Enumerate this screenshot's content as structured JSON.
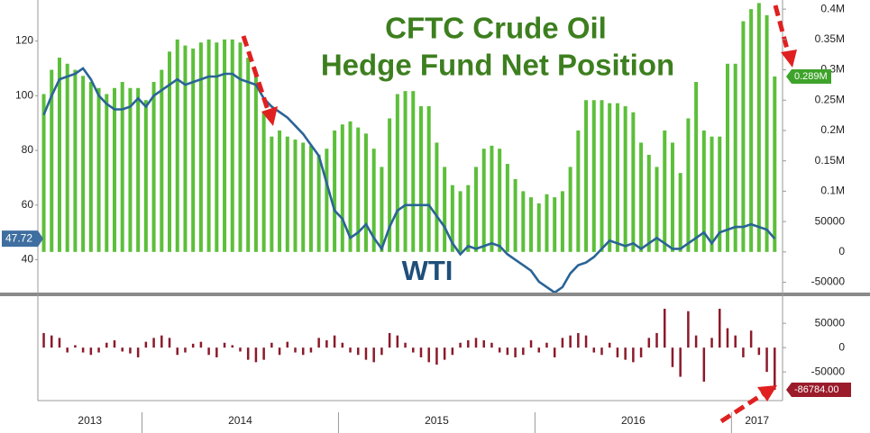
{
  "chart_data": {
    "type": "combo",
    "title_lines": [
      "CFTC Crude Oil",
      "Hedge Fund Net Position"
    ],
    "x": [
      2013.5,
      2013.54,
      2013.58,
      2013.62,
      2013.66,
      2013.7,
      2013.74,
      2013.78,
      2013.82,
      2013.86,
      2013.9,
      2013.94,
      2013.98,
      2014.02,
      2014.06,
      2014.1,
      2014.14,
      2014.18,
      2014.22,
      2014.26,
      2014.3,
      2014.34,
      2014.38,
      2014.42,
      2014.46,
      2014.5,
      2014.54,
      2014.58,
      2014.62,
      2014.66,
      2014.7,
      2014.74,
      2014.78,
      2014.82,
      2014.86,
      2014.9,
      2014.94,
      2014.98,
      2015.02,
      2015.06,
      2015.1,
      2015.14,
      2015.18,
      2015.22,
      2015.26,
      2015.3,
      2015.34,
      2015.38,
      2015.42,
      2015.46,
      2015.5,
      2015.54,
      2015.58,
      2015.62,
      2015.66,
      2015.7,
      2015.74,
      2015.78,
      2015.82,
      2015.86,
      2015.9,
      2015.94,
      2015.98,
      2016.02,
      2016.06,
      2016.1,
      2016.14,
      2016.18,
      2016.22,
      2016.26,
      2016.3,
      2016.34,
      2016.38,
      2016.42,
      2016.46,
      2016.5,
      2016.54,
      2016.58,
      2016.62,
      2016.66,
      2016.7,
      2016.74,
      2016.78,
      2016.82,
      2016.86,
      2016.9,
      2016.94,
      2016.98,
      2017.02,
      2017.06,
      2017.1,
      2017.14,
      2017.18,
      2017.22
    ],
    "xlim": [
      2013.47,
      2017.26
    ],
    "xticks": [
      2013,
      2014,
      2015,
      2016,
      2017
    ],
    "ylim": [
      28,
      135
    ],
    "yticks": [
      40,
      60,
      80,
      100,
      120
    ],
    "y2lim": [
      -67000,
      415000
    ],
    "y2ticks": [
      -50000,
      0,
      50000,
      {
        "value": 100000,
        "label": "0.1M"
      },
      {
        "value": 150000,
        "label": "0.15M"
      },
      {
        "value": 200000,
        "label": "0.2M"
      },
      {
        "value": 250000,
        "label": "0.25M"
      },
      {
        "value": 300000,
        "label": "0.3M"
      },
      {
        "value": 350000,
        "label": "0.35M"
      },
      {
        "value": 400000,
        "label": "0.4M"
      }
    ],
    "y3lim": [
      -109000,
      104000
    ],
    "y3ticks": [
      -50000,
      0,
      50000
    ],
    "series": [
      {
        "kind": "bar",
        "axis": "y2",
        "color": "#5cbf3a",
        "last_value_label": "0.289M",
        "values": [
          260000,
          300000,
          320000,
          310000,
          300000,
          290000,
          280000,
          270000,
          260000,
          270000,
          280000,
          270000,
          270000,
          250000,
          280000,
          300000,
          330000,
          350000,
          340000,
          335000,
          345000,
          350000,
          345000,
          350000,
          350000,
          345000,
          320000,
          290000,
          230000,
          190000,
          200000,
          190000,
          185000,
          180000,
          175000,
          160000,
          170000,
          200000,
          210000,
          215000,
          205000,
          195000,
          170000,
          140000,
          220000,
          260000,
          265000,
          265000,
          240000,
          240000,
          180000,
          140000,
          110000,
          100000,
          110000,
          140000,
          170000,
          175000,
          170000,
          145000,
          120000,
          100000,
          90000,
          80000,
          95000,
          90000,
          100000,
          140000,
          200000,
          250000,
          250000,
          250000,
          245000,
          245000,
          240000,
          230000,
          180000,
          160000,
          140000,
          200000,
          180000,
          130000,
          220000,
          280000,
          200000,
          190000,
          190000,
          310000,
          310000,
          380000,
          400000,
          410000,
          390000,
          289000
        ]
      },
      {
        "name": "WTI",
        "kind": "line",
        "axis": "y",
        "color": "#2a6496",
        "values": [
          93,
          100,
          106,
          107,
          108,
          110,
          106,
          100,
          97,
          95,
          95,
          96,
          99,
          96,
          100,
          102,
          104,
          106,
          104,
          105,
          106,
          107,
          107,
          108,
          108,
          106,
          105,
          104,
          99,
          96,
          94,
          92,
          89,
          86,
          82,
          78,
          68,
          58,
          55,
          48,
          50,
          53,
          48,
          44,
          52,
          58,
          60,
          60,
          60,
          60,
          56,
          52,
          46,
          42,
          45,
          44,
          45,
          46,
          45,
          42,
          40,
          38,
          36,
          32,
          30,
          28,
          30,
          35,
          38,
          39,
          41,
          44,
          47,
          46,
          45,
          46,
          44,
          46,
          48,
          46,
          44,
          44,
          46,
          48,
          50,
          46,
          50,
          51,
          52,
          52,
          53,
          52,
          51,
          47.72
        ]
      },
      {
        "kind": "bar",
        "axis": "y3",
        "color": "#8b1a2a",
        "last_value_label": "-86784.00",
        "values": [
          30000,
          25000,
          20000,
          -10000,
          5000,
          -10000,
          -15000,
          -10000,
          10000,
          15000,
          -8000,
          -12000,
          -20000,
          12000,
          20000,
          25000,
          20000,
          -15000,
          -10000,
          8000,
          12000,
          -15000,
          -20000,
          10000,
          5000,
          -8000,
          -25000,
          -30000,
          -25000,
          10000,
          -15000,
          12000,
          -10000,
          -15000,
          -10000,
          20000,
          15000,
          25000,
          10000,
          -10000,
          -15000,
          -25000,
          -30000,
          -15000,
          30000,
          25000,
          10000,
          -10000,
          -20000,
          -30000,
          -35000,
          -25000,
          -15000,
          10000,
          15000,
          20000,
          15000,
          10000,
          -10000,
          -15000,
          -20000,
          -15000,
          15000,
          -10000,
          10000,
          -20000,
          20000,
          25000,
          30000,
          25000,
          -10000,
          -15000,
          10000,
          -20000,
          -25000,
          -30000,
          -20000,
          20000,
          30000,
          80000,
          -40000,
          -60000,
          75000,
          25000,
          -70000,
          20000,
          80000,
          40000,
          25000,
          -20000,
          35000,
          -15000,
          -50000,
          -86784
        ]
      }
    ]
  }
}
